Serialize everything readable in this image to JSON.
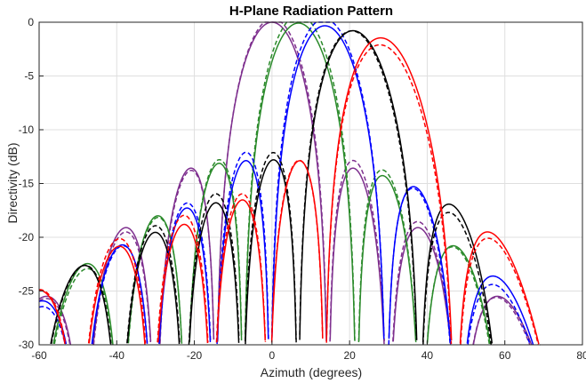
{
  "chart_data": {
    "type": "line",
    "title": "H-Plane Radiation Pattern",
    "xlabel": "Azimuth (degrees)",
    "ylabel": "Directivity (dB)",
    "xlim": [
      -60,
      80
    ],
    "ylim": [
      -30,
      0
    ],
    "xticks": [
      -60,
      -40,
      -20,
      0,
      20,
      40,
      60,
      80
    ],
    "yticks": [
      0,
      -5,
      -10,
      -15,
      -20,
      -25,
      -30
    ],
    "grid": true,
    "legend": "none",
    "pattern_model": {
      "elements": 8,
      "spacing_wavelengths": 0.5,
      "element_factor_exponent": 1.3
    },
    "series": [
      {
        "color": "#7e2f8e",
        "steer_deg": 0,
        "values_style": "solid and dashed"
      },
      {
        "color": "#2a8a2a",
        "steer_deg": 7,
        "values_style": "solid and dashed"
      },
      {
        "color": "#0000ff",
        "steer_deg": 14,
        "values_style": "solid and dashed"
      },
      {
        "color": "#000000",
        "steer_deg": 21.5,
        "values_style": "solid and dashed"
      },
      {
        "color": "#ff0000",
        "steer_deg": 29,
        "values_style": "solid and dashed"
      }
    ],
    "peaks": [
      {
        "color": "#7e2f8e",
        "main_lobe_x": 0,
        "main_lobe_y": 0
      },
      {
        "color": "#2a8a2a",
        "main_lobe_x": 7,
        "main_lobe_y": -0.05
      },
      {
        "color": "#0000ff",
        "main_lobe_x": 14,
        "main_lobe_y": -0.2
      },
      {
        "color": "#000000",
        "main_lobe_x": 21.5,
        "main_lobe_y": -0.5
      },
      {
        "color": "#ff0000",
        "main_lobe_x": 29,
        "main_lobe_y": -0.9
      }
    ]
  }
}
